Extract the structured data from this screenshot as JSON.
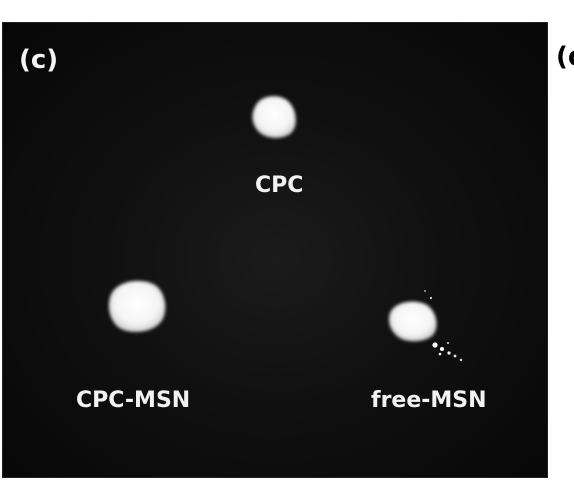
{
  "figure": {
    "panel_label": "(c)",
    "next_panel_label": "(d",
    "samples": [
      {
        "label": "CPC"
      },
      {
        "label": "CPC-MSN"
      },
      {
        "label": "free-MSN"
      }
    ]
  },
  "colors": {
    "background": "#0a0a0a",
    "powder": "#ffffff",
    "label_text": "#f2f2f2"
  }
}
